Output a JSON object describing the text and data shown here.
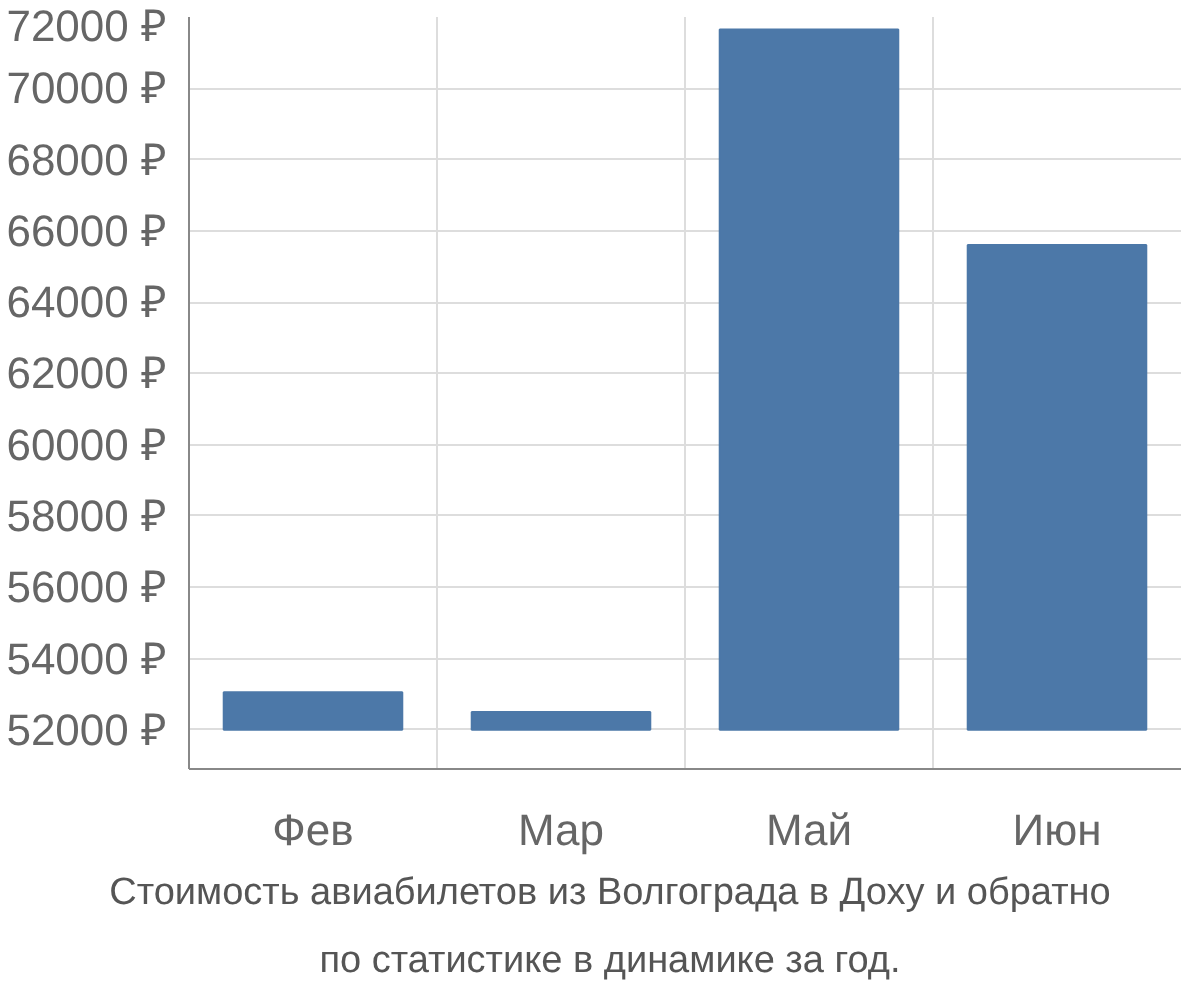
{
  "chart_data": {
    "type": "bar",
    "categories": [
      "Фев",
      "Мар",
      "Май",
      "Июн"
    ],
    "values": [
      53050,
      52500,
      71650,
      65600
    ],
    "color": "#4c78a8",
    "ylim": [
      52000,
      72000
    ],
    "yticks": [
      {
        "value": 52000,
        "label": "52000 ₽"
      },
      {
        "value": 54000,
        "label": "54000 ₽"
      },
      {
        "value": 56000,
        "label": "56000 ₽"
      },
      {
        "value": 58000,
        "label": "58000 ₽"
      },
      {
        "value": 60000,
        "label": "60000 ₽"
      },
      {
        "value": 62000,
        "label": "62000 ₽"
      },
      {
        "value": 64000,
        "label": "64000 ₽"
      },
      {
        "value": 66000,
        "label": "66000 ₽"
      },
      {
        "value": 68000,
        "label": "68000 ₽"
      },
      {
        "value": 70000,
        "label": "70000 ₽"
      },
      {
        "value": 72000,
        "label": "72000 ₽"
      }
    ],
    "grid": true,
    "annotations": [
      "Стоимость авиабилетов из Волгограда в Доху и обратно",
      "по статистике в динамике за год."
    ]
  }
}
